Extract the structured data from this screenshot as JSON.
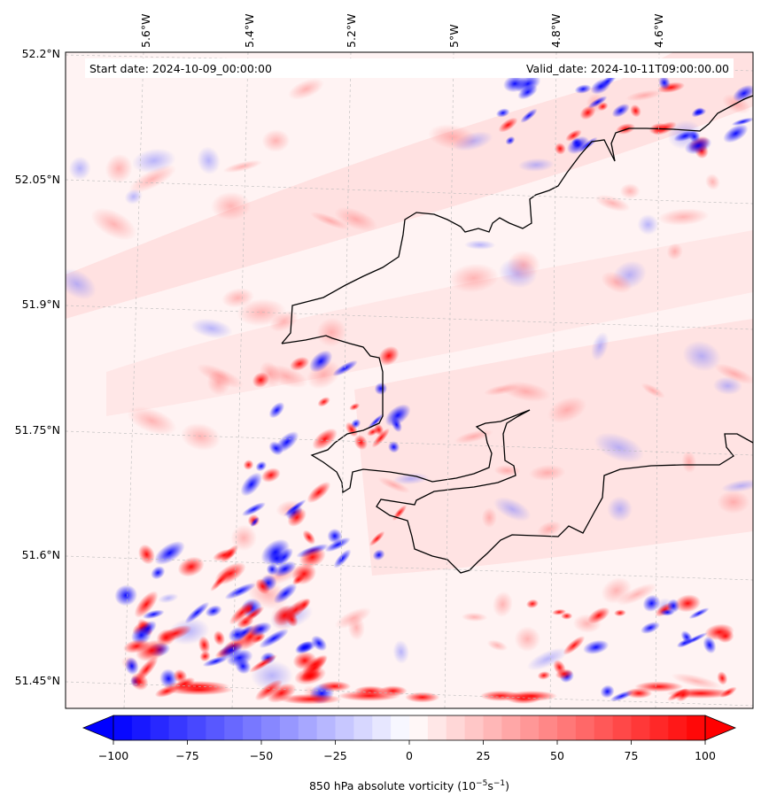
{
  "header": {
    "start_date": "Start date: 2024-10-09_00:00:00",
    "valid_date": "Valid_date: 2024-10-11T09:00:00.00"
  },
  "axes": {
    "lon_labels": [
      "5.6°W",
      "5.4°W",
      "5.2°W",
      "5°W",
      "4.8°W",
      "4.6°W"
    ],
    "lat_labels": [
      "52.2°N",
      "52.05°N",
      "51.9°N",
      "51.75°N",
      "51.6°N",
      "51.45°N"
    ]
  },
  "colorbar": {
    "ticks": [
      "−100",
      "−75",
      "−50",
      "−25",
      "0",
      "25",
      "50",
      "75",
      "100"
    ],
    "label_prefix": "850 hPa absolute vorticity (10",
    "label_exp1": "−5",
    "label_mid": "s",
    "label_exp2": "−1",
    "label_suffix": ")",
    "min": -100,
    "max": 100,
    "neg_color": "#0000ff",
    "pos_color": "#ff0000"
  }
}
